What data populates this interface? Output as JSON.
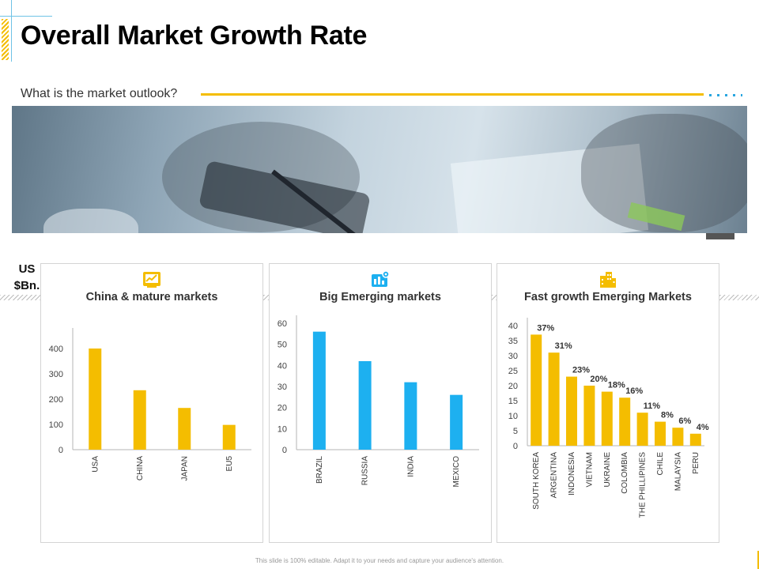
{
  "slide": {
    "title": "Overall Market Growth Rate",
    "subtitle": "What is the market outlook?",
    "unit_label_1": "US",
    "unit_label_2": "$Bn.",
    "footer": "This slide is 100% editable. Adapt it to your needs and capture your audience's attention."
  },
  "colors": {
    "yellow": "#F4BD00",
    "blue": "#1DB0F0",
    "accent_line": "#F4BD00",
    "accent_dots": "#29A6E0"
  },
  "panels": [
    {
      "title": "China & mature markets",
      "icon": "chart-report-icon"
    },
    {
      "title": "Big Emerging markets",
      "icon": "dashboard-gear-icon"
    },
    {
      "title": "Fast growth Emerging Markets",
      "icon": "city-buildings-icon"
    }
  ],
  "chart_data": [
    {
      "type": "bar",
      "title": "China & mature markets",
      "categories": [
        "USA",
        "CHINA",
        "JAPAN",
        "EU5"
      ],
      "values": [
        400,
        235,
        165,
        98
      ],
      "ylim": [
        0,
        450
      ],
      "yticks": [
        0,
        100,
        200,
        300,
        400
      ],
      "color": "#F4BD00",
      "grid": false
    },
    {
      "type": "bar",
      "title": "Big Emerging markets",
      "categories": [
        "BRAZIL",
        "RUSSIA",
        "INDIA",
        "MEXICO"
      ],
      "values": [
        56,
        42,
        32,
        26
      ],
      "ylim": [
        0,
        60
      ],
      "yticks": [
        0,
        10,
        20,
        30,
        40,
        50,
        60
      ],
      "color": "#1DB0F0",
      "grid": false
    },
    {
      "type": "bar",
      "title": "Fast growth Emerging Markets",
      "categories": [
        "SOUTH KOREA",
        "ARGENTINA",
        "INDONESIA",
        "VIETNAM",
        "UKRAINE",
        "COLOMBIA",
        "THE PHILLIPINES",
        "CHILE",
        "MALAYSIA",
        "PERU"
      ],
      "values": [
        37,
        31,
        23,
        20,
        18,
        16,
        11,
        8,
        6,
        4
      ],
      "data_labels": [
        "37%",
        "31%",
        "23%",
        "20%",
        "18%",
        "16%",
        "11%",
        "8%",
        "6%",
        "4%"
      ],
      "ylim": [
        0,
        40
      ],
      "yticks": [
        0,
        5,
        10,
        15,
        20,
        25,
        30,
        35,
        40
      ],
      "color": "#F4BD00",
      "grid": false
    }
  ]
}
